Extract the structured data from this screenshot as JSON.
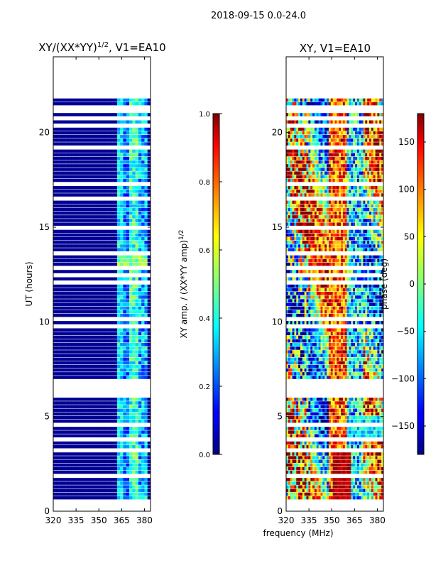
{
  "figure": {
    "suptitle": "2018-09-15 0.0-24.0",
    "shared_xlabel": "frequency (MHz)"
  },
  "chart_data": [
    {
      "type": "heatmap",
      "title": "XY/(XX*YY)",
      "title_superscript": "1/2",
      "title_suffix": ", V1=EA10",
      "xlabel": "",
      "ylabel": "UT (hours)",
      "xlim": [
        320,
        384
      ],
      "ylim": [
        0,
        24
      ],
      "xticks": [
        "320",
        "335",
        "350",
        "365",
        "380"
      ],
      "yticks": [
        "0",
        "5",
        "10",
        "15",
        "20"
      ],
      "data_extent_hours": [
        0.6,
        21.8
      ],
      "data_freq_range_mhz": [
        320,
        384
      ],
      "colorbar": {
        "label": "XY amp. / (XX*YY amp)",
        "label_superscript": "1/2",
        "range": [
          0.0,
          1.0
        ],
        "ticks": [
          "0.0",
          "0.2",
          "0.4",
          "0.6",
          "0.8",
          "1.0"
        ],
        "colormap": "jet"
      }
    },
    {
      "type": "heatmap",
      "title": "XY, V1=EA10",
      "xlabel": "frequency (MHz)",
      "ylabel": "",
      "xlim": [
        320,
        384
      ],
      "ylim": [
        0,
        24
      ],
      "xticks": [
        "320",
        "335",
        "350",
        "365",
        "380"
      ],
      "yticks": [
        "0",
        "5",
        "10",
        "15",
        "20"
      ],
      "data_extent_hours": [
        0.6,
        21.8
      ],
      "data_freq_range_mhz": [
        320,
        384
      ],
      "colorbar": {
        "label": "phase (deg)",
        "range": [
          -180,
          180
        ],
        "ticks": [
          "−150",
          "−100",
          "−50",
          "0",
          "50",
          "100",
          "150"
        ],
        "colormap": "jet"
      }
    }
  ]
}
